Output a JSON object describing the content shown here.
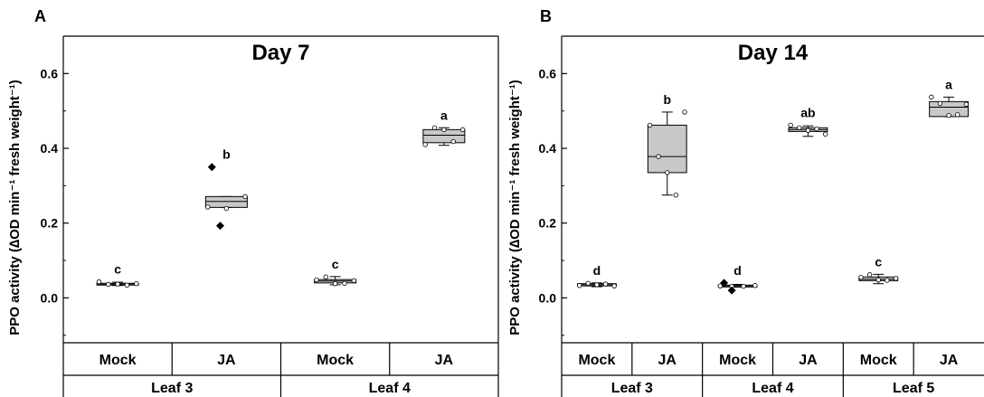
{
  "colors": {
    "box_fill": "#c8c8c8",
    "axis": "#000000",
    "point_fill": "#ffffff",
    "outlier": "#000000"
  },
  "chart_data": [
    {
      "panel_label": "A",
      "type": "box",
      "title": "Day 7",
      "ylabel": "PPO activity (∆OD min⁻¹ fresh weight⁻¹)",
      "ylim": [
        -0.12,
        0.7
      ],
      "yticks": [
        "0.0",
        "0.2",
        "0.4",
        "0.6"
      ],
      "groups": [
        {
          "treatment": "Mock",
          "leaf": "Leaf 3",
          "letter": "c",
          "q1": 0.035,
          "median": 0.037,
          "q3": 0.039,
          "whisker_low": 0.033,
          "whisker_high": 0.042,
          "points": [
            0.043,
            0.036,
            0.037,
            0.034,
            0.038
          ],
          "outliers": []
        },
        {
          "treatment": "JA",
          "leaf": "Leaf 3",
          "letter": "b",
          "q1": 0.242,
          "median": 0.258,
          "q3": 0.271,
          "whisker_low": 0.242,
          "whisker_high": 0.271,
          "points": [
            0.243,
            0.239,
            0.271
          ],
          "outliers": [
            0.35,
            0.193
          ]
        },
        {
          "treatment": "Mock",
          "leaf": "Leaf 4",
          "letter": "c",
          "q1": 0.04,
          "median": 0.045,
          "q3": 0.049,
          "whisker_low": 0.035,
          "whisker_high": 0.057,
          "points": [
            0.048,
            0.056,
            0.038,
            0.039,
            0.046
          ],
          "outliers": []
        },
        {
          "treatment": "JA",
          "leaf": "Leaf 4",
          "letter": "a",
          "q1": 0.415,
          "median": 0.435,
          "q3": 0.45,
          "whisker_low": 0.408,
          "whisker_high": 0.455,
          "points": [
            0.41,
            0.455,
            0.45,
            0.418,
            0.45
          ],
          "outliers": []
        }
      ],
      "leaf_labels": [
        "Leaf 3",
        "Leaf 4"
      ]
    },
    {
      "panel_label": "B",
      "type": "box",
      "title": "Day 14",
      "ylabel": "PPO activity (∆OD min⁻¹ fresh weight⁻¹)",
      "ylim": [
        -0.12,
        0.7
      ],
      "yticks": [
        "0.0",
        "0.2",
        "0.4",
        "0.6"
      ],
      "groups": [
        {
          "treatment": "Mock",
          "leaf": "Leaf 3",
          "letter": "d",
          "q1": 0.032,
          "median": 0.035,
          "q3": 0.038,
          "whisker_low": 0.03,
          "whisker_high": 0.04,
          "points": [
            0.033,
            0.039,
            0.035,
            0.037,
            0.032
          ],
          "outliers": []
        },
        {
          "treatment": "JA",
          "leaf": "Leaf 3",
          "letter": "b",
          "q1": 0.335,
          "median": 0.378,
          "q3": 0.462,
          "whisker_low": 0.275,
          "whisker_high": 0.497,
          "points": [
            0.462,
            0.378,
            0.335,
            0.275,
            0.497
          ],
          "outliers": []
        },
        {
          "treatment": "Mock",
          "leaf": "Leaf 4",
          "letter": "d",
          "q1": 0.031,
          "median": 0.032,
          "q3": 0.034,
          "whisker_low": 0.029,
          "whisker_high": 0.036,
          "points": [
            0.032,
            0.031,
            0.031,
            0.033
          ],
          "outliers": [
            0.04,
            0.02
          ]
        },
        {
          "treatment": "JA",
          "leaf": "Leaf 4",
          "letter": "ab",
          "q1": 0.445,
          "median": 0.45,
          "q3": 0.455,
          "whisker_low": 0.432,
          "whisker_high": 0.46,
          "points": [
            0.462,
            0.455,
            0.448,
            0.452,
            0.438
          ],
          "outliers": []
        },
        {
          "treatment": "Mock",
          "leaf": "Leaf 5",
          "letter": "c",
          "q1": 0.046,
          "median": 0.05,
          "q3": 0.056,
          "whisker_low": 0.038,
          "whisker_high": 0.063,
          "points": [
            0.055,
            0.062,
            0.048,
            0.047,
            0.052
          ],
          "outliers": []
        },
        {
          "treatment": "JA",
          "leaf": "Leaf 5",
          "letter": "a",
          "q1": 0.485,
          "median": 0.51,
          "q3": 0.525,
          "whisker_low": 0.485,
          "whisker_high": 0.537,
          "points": [
            0.537,
            0.52,
            0.488,
            0.49,
            0.518
          ],
          "outliers": []
        }
      ],
      "leaf_labels": [
        "Leaf 3",
        "Leaf 4",
        "Leaf 5"
      ]
    }
  ]
}
